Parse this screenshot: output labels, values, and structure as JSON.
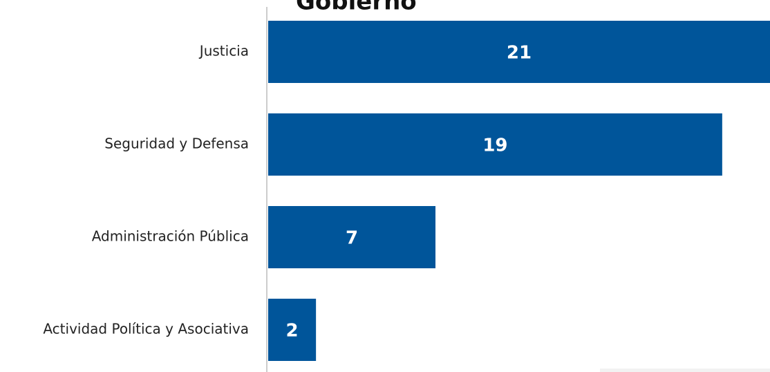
{
  "chart_data": {
    "type": "bar",
    "orientation": "horizontal",
    "title": "Gobierno",
    "categories": [
      "Justicia",
      "Seguridad y Defensa",
      "Administración Pública",
      "Actividad Política y Asociativa"
    ],
    "values": [
      21,
      19,
      7,
      2
    ],
    "color": "#00559a",
    "xlim": [
      0,
      21
    ],
    "grid": false
  }
}
